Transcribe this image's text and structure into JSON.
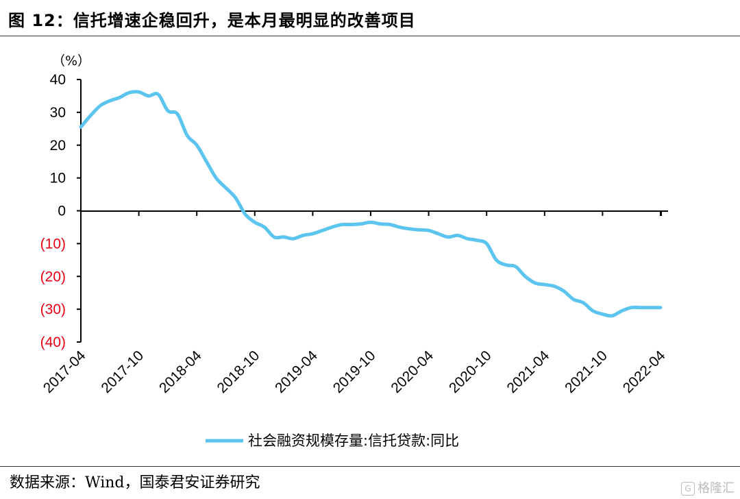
{
  "header": {
    "title": "图 12：信托增速企稳回升，是本月最明显的改善项目"
  },
  "footer": {
    "source": "数据来源：Wind，国泰君安证券研究",
    "watermark": "格隆汇"
  },
  "colors": {
    "series": "#5bc5ef",
    "negative_tick": "#e60012",
    "axis": "#000000"
  },
  "chart_data": {
    "type": "line",
    "unit_label": "（%）",
    "ylim": [
      -40,
      40
    ],
    "yticks": [
      40,
      30,
      20,
      10,
      0,
      -10,
      -20,
      -30,
      -40
    ],
    "ytick_labels": [
      "40",
      "30",
      "20",
      "10",
      "0",
      "(10)",
      "(20)",
      "(30)",
      "(40)"
    ],
    "xtick_labels": [
      "2017-04",
      "2017-10",
      "2018-04",
      "2018-10",
      "2019-04",
      "2019-10",
      "2020-04",
      "2020-10",
      "2021-04",
      "2021-10",
      "2022-04"
    ],
    "legend": "top-bottom",
    "legend_position": "bottom-center",
    "grid": false,
    "series": [
      {
        "name": "社会融资规模存量:信托贷款:同比",
        "x": [
          "2017-04",
          "2017-05",
          "2017-06",
          "2017-07",
          "2017-08",
          "2017-09",
          "2017-10",
          "2017-11",
          "2017-12",
          "2018-01",
          "2018-02",
          "2018-03",
          "2018-04",
          "2018-05",
          "2018-06",
          "2018-07",
          "2018-08",
          "2018-09",
          "2018-10",
          "2018-11",
          "2018-12",
          "2019-01",
          "2019-02",
          "2019-03",
          "2019-04",
          "2019-05",
          "2019-06",
          "2019-07",
          "2019-08",
          "2019-09",
          "2019-10",
          "2019-11",
          "2019-12",
          "2020-01",
          "2020-02",
          "2020-03",
          "2020-04",
          "2020-05",
          "2020-06",
          "2020-07",
          "2020-08",
          "2020-09",
          "2020-10",
          "2020-11",
          "2020-12",
          "2021-01",
          "2021-02",
          "2021-03",
          "2021-04",
          "2021-05",
          "2021-06",
          "2021-07",
          "2021-08",
          "2021-09",
          "2021-10",
          "2021-11",
          "2021-12",
          "2022-01",
          "2022-02",
          "2022-03",
          "2022-04"
        ],
        "values": [
          25.5,
          29,
          32,
          33.5,
          34.5,
          36,
          36.2,
          35,
          35.5,
          30.5,
          29.5,
          23,
          20,
          15,
          10,
          7,
          4,
          -1,
          -3.5,
          -5,
          -8,
          -8,
          -8.5,
          -7.5,
          -7,
          -6,
          -5,
          -4.2,
          -4.2,
          -4,
          -3.5,
          -4,
          -4.2,
          -5,
          -5.5,
          -5.8,
          -6,
          -7,
          -8,
          -7.5,
          -8.5,
          -9,
          -10,
          -15,
          -16.5,
          -17,
          -20,
          -22,
          -22.5,
          -23,
          -24.5,
          -27,
          -28,
          -30.5,
          -31.5,
          -32,
          -30.5,
          -29.5,
          -29.5,
          -29.5,
          -29.5
        ]
      }
    ]
  }
}
